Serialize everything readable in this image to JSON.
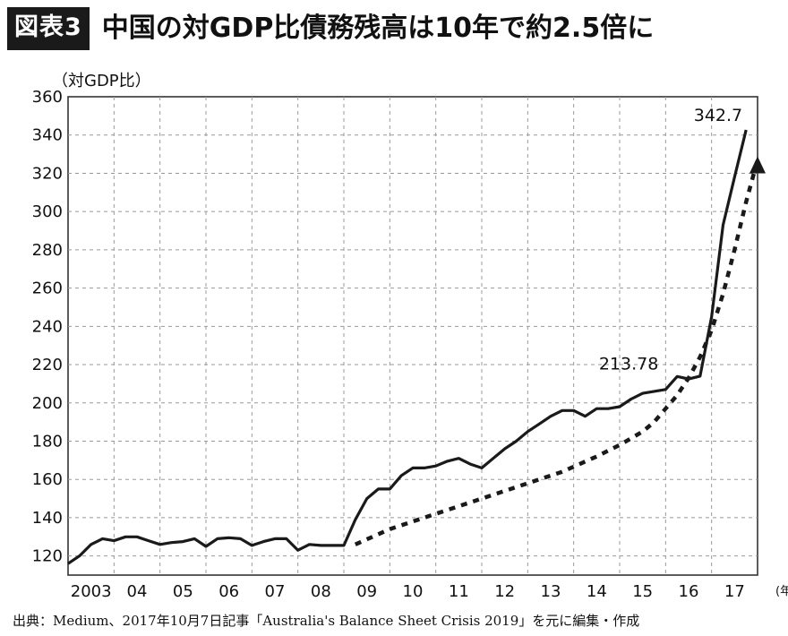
{
  "figure": {
    "badge": "図表3",
    "title": "中国の対GDP比債務残高は10年で約2.5倍に",
    "source": "出典：Medium、2017年10月7日記事「Australia's Balance Sheet Crisis 2019」を元に編集・作成"
  },
  "chart_data": {
    "type": "line",
    "title": "中国の対GDP比債務残高は10年で約2.5倍に",
    "ylabel": "（対GDP比）",
    "xlabel": "",
    "x_unit": "(年)",
    "ylim": [
      110,
      360
    ],
    "xlim": [
      2003.0,
      2018.0
    ],
    "yticks": [
      120,
      140,
      160,
      180,
      200,
      220,
      240,
      260,
      280,
      300,
      320,
      340,
      360
    ],
    "xtick_labels": [
      "2003",
      "04",
      "05",
      "06",
      "07",
      "08",
      "09",
      "10",
      "11",
      "12",
      "13",
      "14",
      "15",
      "16",
      "17"
    ],
    "grid": true,
    "annotations": [
      {
        "text": "213.78",
        "x": 2016.0,
        "y": 213.78
      },
      {
        "text": "342.7",
        "x": 2017.75,
        "y": 342.7
      }
    ],
    "series": [
      {
        "style": "solid",
        "x": [
          2003.0,
          2003.25,
          2003.5,
          2003.75,
          2004.0,
          2004.25,
          2004.5,
          2004.75,
          2005.0,
          2005.25,
          2005.5,
          2005.75,
          2006.0,
          2006.25,
          2006.5,
          2006.75,
          2007.0,
          2007.25,
          2007.5,
          2007.75,
          2008.0,
          2008.25,
          2008.5,
          2008.75,
          2009.0,
          2009.25,
          2009.5,
          2009.75,
          2010.0,
          2010.25,
          2010.5,
          2010.75,
          2011.0,
          2011.25,
          2011.5,
          2011.75,
          2012.0,
          2012.25,
          2012.5,
          2012.75,
          2013.0,
          2013.25,
          2013.5,
          2013.75,
          2014.0,
          2014.25,
          2014.5,
          2014.75,
          2015.0,
          2015.25,
          2015.5,
          2015.75,
          2016.0,
          2016.25,
          2016.5,
          2016.75,
          2017.0,
          2017.25,
          2017.5,
          2017.75
        ],
        "y": [
          116,
          120,
          126,
          129,
          128,
          130,
          130,
          128,
          126,
          127,
          127.5,
          129,
          125,
          129,
          129.5,
          129,
          125.5,
          127.5,
          129,
          129,
          123,
          126,
          125.5,
          125.5,
          125.5,
          139,
          150,
          155,
          155,
          162,
          166,
          166,
          167,
          169.5,
          171,
          168,
          166,
          171,
          176,
          180,
          185,
          189,
          193,
          196,
          196,
          193,
          197,
          197,
          198,
          202,
          205,
          206,
          207,
          213.78,
          212.5,
          214,
          245,
          293,
          318,
          342.7
        ]
      },
      {
        "style": "dotted",
        "arrow": true,
        "x": [
          2009.25,
          2010.0,
          2011.0,
          2012.0,
          2013.0,
          2013.75,
          2014.5,
          2015.0,
          2015.5,
          2015.75,
          2016.0,
          2016.25,
          2016.5,
          2016.75,
          2017.0,
          2017.25,
          2017.5,
          2017.75,
          2018.0
        ],
        "y": [
          126,
          134,
          142,
          150,
          158,
          164,
          172,
          178,
          185,
          190,
          197,
          204,
          213,
          224,
          238,
          257,
          280,
          305,
          327
        ]
      }
    ]
  }
}
